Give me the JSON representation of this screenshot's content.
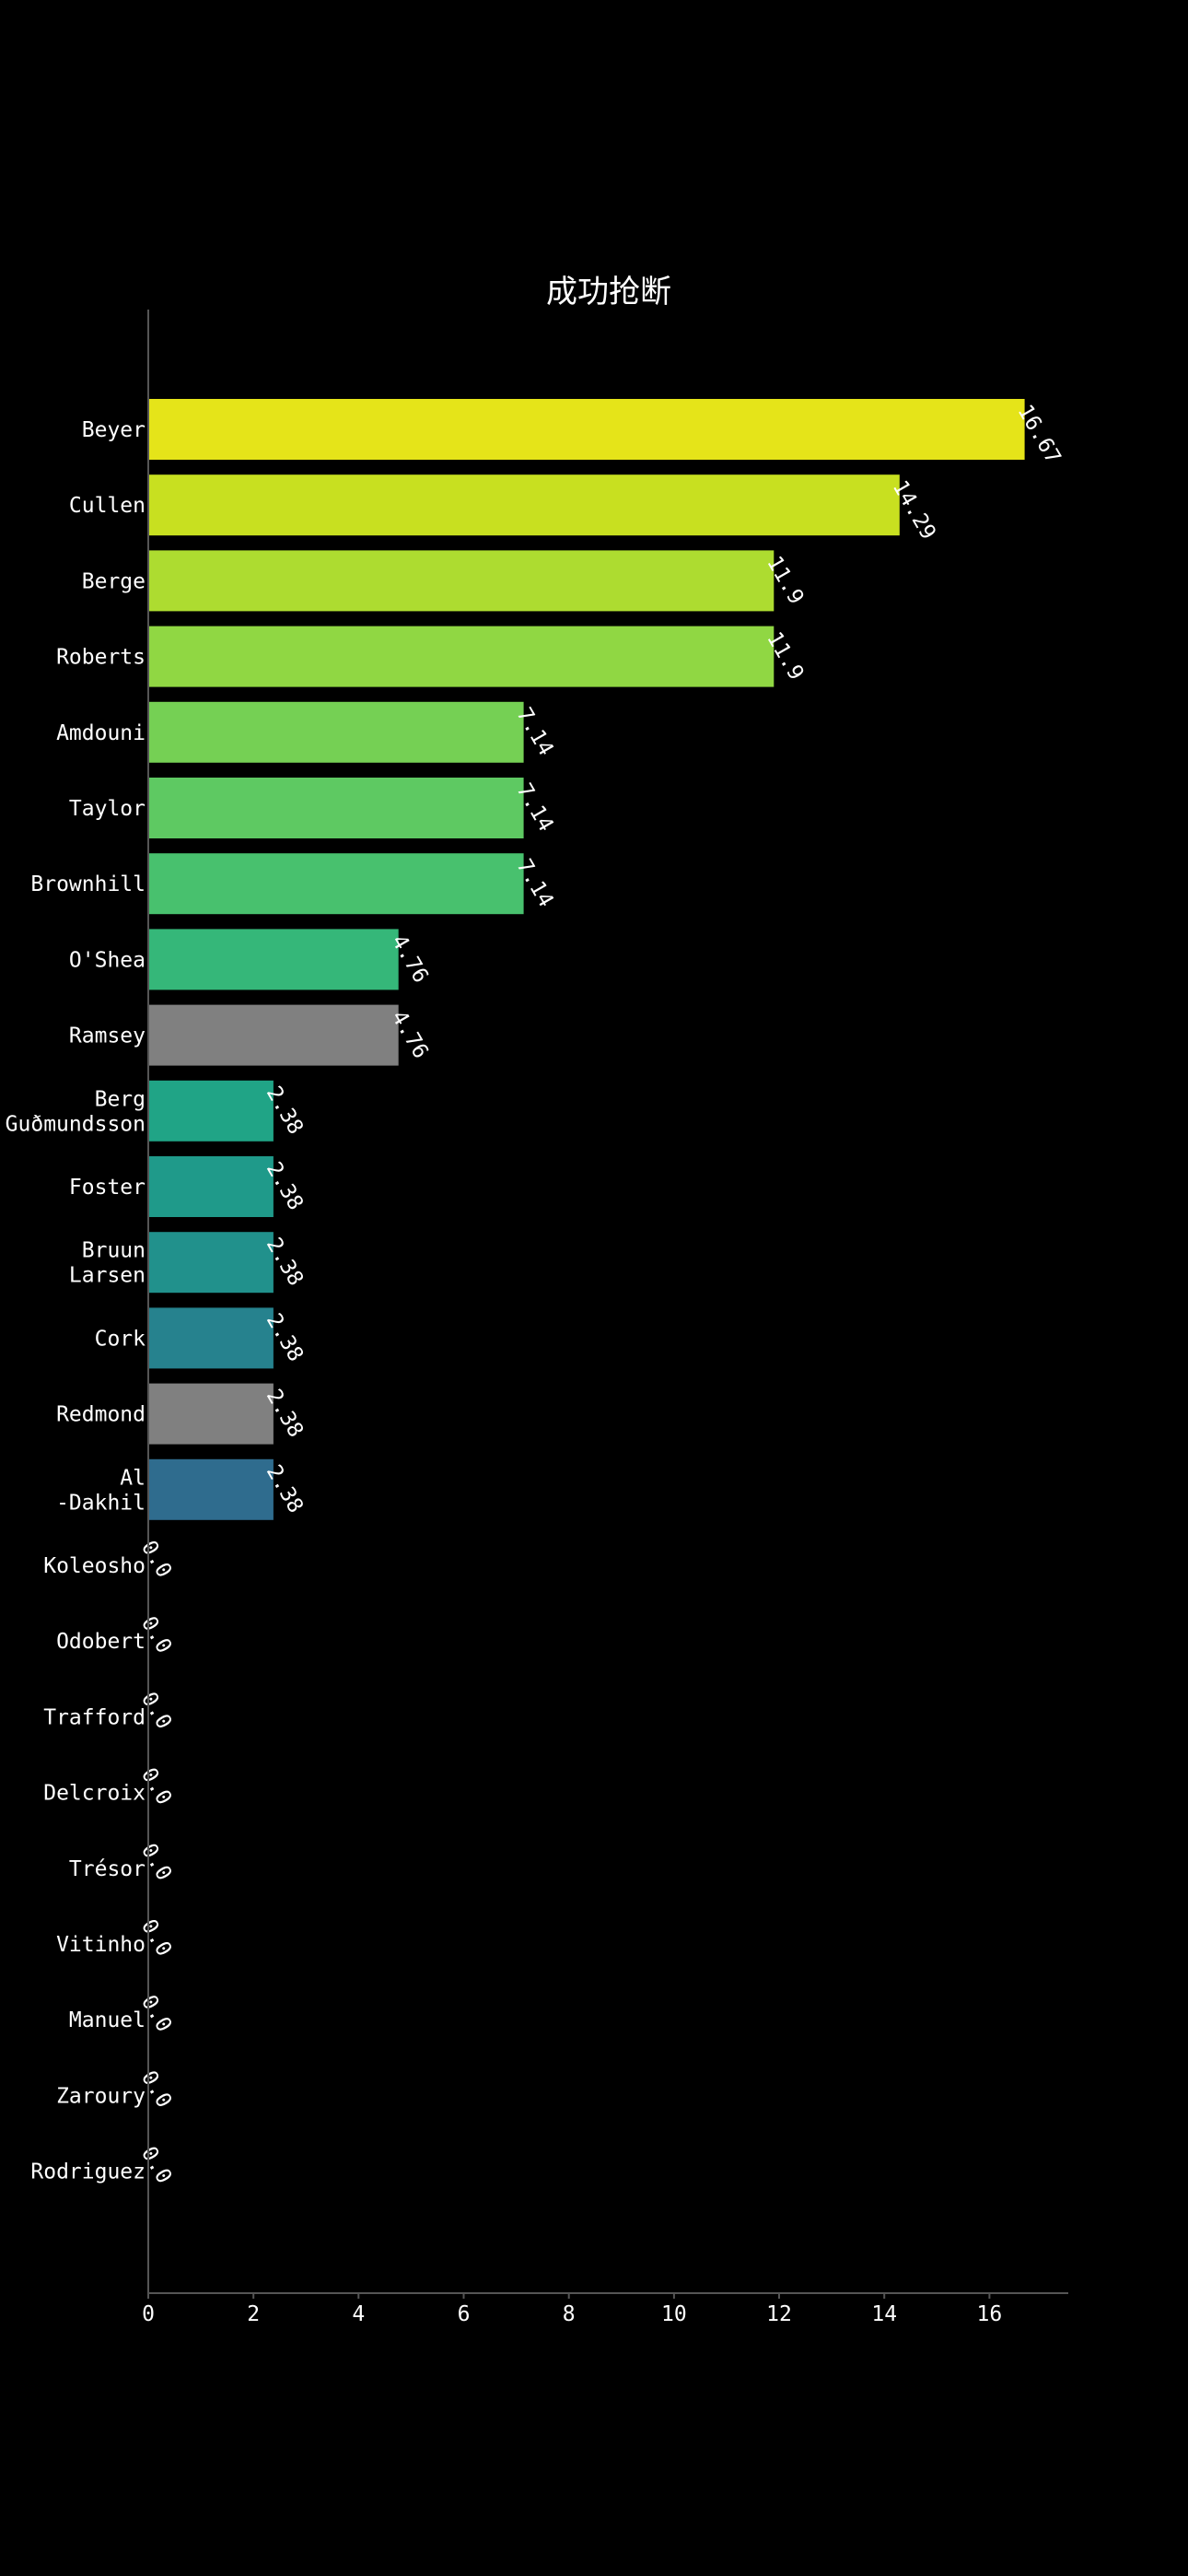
{
  "chart_data": {
    "type": "bar",
    "orientation": "horizontal",
    "title": "成功抢断",
    "xlabel": "",
    "ylabel": "",
    "xlim": [
      0,
      17.5
    ],
    "xticks": [
      0,
      2,
      4,
      6,
      8,
      10,
      12,
      14,
      16
    ],
    "grid": false,
    "legend": "none",
    "background": "#000000",
    "categories": [
      [
        "Beyer"
      ],
      [
        "Cullen"
      ],
      [
        "Berge"
      ],
      [
        "Roberts"
      ],
      [
        "Amdouni"
      ],
      [
        "Taylor"
      ],
      [
        "Brownhill"
      ],
      [
        "O'Shea"
      ],
      [
        "Ramsey"
      ],
      [
        "Berg",
        "Guðmundsson"
      ],
      [
        "Foster"
      ],
      [
        "Bruun",
        "Larsen"
      ],
      [
        "Cork"
      ],
      [
        "Redmond"
      ],
      [
        "Al",
        "-Dakhil"
      ],
      [
        "Koleosho"
      ],
      [
        "Odobert"
      ],
      [
        "Trafford"
      ],
      [
        "Delcroix"
      ],
      [
        "Trésor"
      ],
      [
        "Vitinho"
      ],
      [
        "Manuel"
      ],
      [
        "Zaroury"
      ],
      [
        "Rodriguez"
      ]
    ],
    "values": [
      16.67,
      14.29,
      11.9,
      11.9,
      7.14,
      7.14,
      7.14,
      4.76,
      4.76,
      2.38,
      2.38,
      2.38,
      2.38,
      2.38,
      2.38,
      0.0,
      0.0,
      0.0,
      0.0,
      0.0,
      0.0,
      0.0,
      0.0,
      0.0
    ],
    "value_labels": [
      "16.67",
      "14.29",
      "11.9",
      "11.9",
      "7.14",
      "7.14",
      "7.14",
      "4.76",
      "4.76",
      "2.38",
      "2.38",
      "2.38",
      "2.38",
      "2.38",
      "2.38",
      "0.0",
      "0.0",
      "0.0",
      "0.0",
      "0.0",
      "0.0",
      "0.0",
      "0.0",
      "0.0"
    ],
    "colors": [
      "#e5e419",
      "#c8e020",
      "#addc30",
      "#90d743",
      "#75d054",
      "#5ec962",
      "#48c16e",
      "#35b779",
      "#808080",
      "#20a486",
      "#1f9a8a",
      "#21918c",
      "#26828e",
      "#808080",
      "#2f6c8e",
      "#33638d",
      "#37598c",
      "#3b518b",
      "#404688",
      "#443b84",
      "#472f7d",
      "#482374",
      "#481668",
      "#470d60"
    ]
  }
}
